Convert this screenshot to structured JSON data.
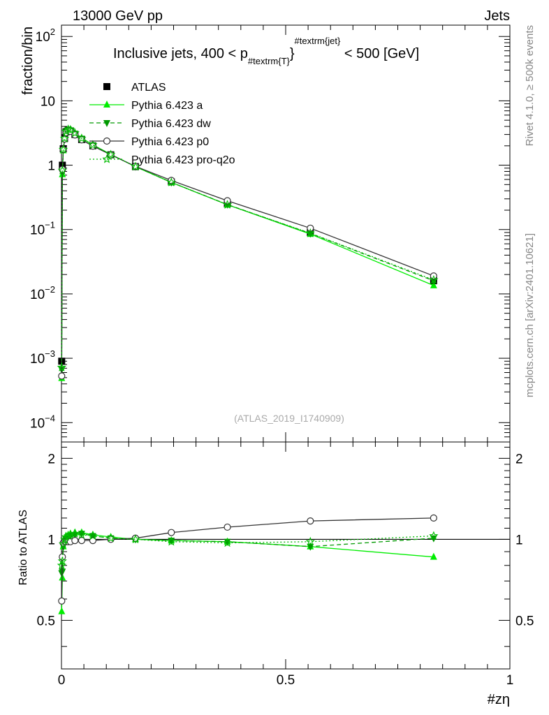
{
  "header": {
    "left": "13000 GeV pp",
    "right": "Jets",
    "analysis_id": "(ATLAS_2019_I1740909)",
    "side_top": "Rivet 4.1.0, ≥ 500k events",
    "side_bottom": "mcplots.cern.ch [arXiv:2401.10621]"
  },
  "colors": {
    "data": "#000000",
    "pythia_a": "#00ee00",
    "pythia_dw": "#009900",
    "pythia_p0": "#333333",
    "pythia_proq2o": "#00bb00"
  },
  "chart_data": {
    "type": "line",
    "title_parts": {
      "before": "Inclusive jets, 400 < p",
      "sub": "#textrm{T}",
      "sup": "#textrm{jet}",
      "after": " < 500 [GeV]"
    },
    "xlabel": "#zη",
    "ylabel": "fraction/bin",
    "ratio_ylabel": "Ratio to ATLAS",
    "xlim": [
      0,
      1
    ],
    "ylim": [
      5e-05,
      150
    ],
    "ratio_ylim": [
      0.33,
      2.3
    ],
    "x_ticks": [
      "0",
      "0.5",
      "1"
    ],
    "y_ticks": [
      {
        "value": 100,
        "base": "10",
        "exp": "2"
      },
      {
        "value": 10,
        "base": "10",
        "exp": ""
      },
      {
        "value": 1,
        "base": "1",
        "exp": ""
      },
      {
        "value": 0.1,
        "base": "10",
        "exp": "−1"
      },
      {
        "value": 0.01,
        "base": "10",
        "exp": "−2"
      },
      {
        "value": 0.001,
        "base": "10",
        "exp": "−3"
      },
      {
        "value": 0.0001,
        "base": "10",
        "exp": "−4"
      }
    ],
    "ratio_y_ticks": [
      "0.5",
      "1",
      "2"
    ],
    "x": [
      0.0005,
      0.002,
      0.004,
      0.007,
      0.01,
      0.015,
      0.02,
      0.03,
      0.045,
      0.07,
      0.11,
      0.165,
      0.245,
      0.37,
      0.555,
      0.83
    ],
    "series": [
      {
        "name": "ATLAS",
        "key": "data",
        "marker": "square",
        "line": "none",
        "values": [
          0.0009,
          1.0,
          1.8,
          2.6,
          3.3,
          3.5,
          3.4,
          3.0,
          2.5,
          2.0,
          1.45,
          0.95,
          0.55,
          0.25,
          0.09,
          0.016
        ],
        "ratio": [
          1,
          1,
          1,
          1,
          1,
          1,
          1,
          1,
          1,
          1,
          1,
          1,
          1,
          1,
          1,
          1
        ]
      },
      {
        "name": "Pythia 6.423 a",
        "key": "pythia_a",
        "marker": "triangle-up",
        "line": "solid",
        "values": [
          0.00049,
          0.72,
          1.7,
          2.6,
          3.4,
          3.65,
          3.6,
          3.2,
          2.65,
          2.08,
          1.47,
          0.95,
          0.54,
          0.243,
          0.085,
          0.0135
        ],
        "ratio": [
          0.54,
          0.72,
          0.94,
          1.0,
          1.03,
          1.04,
          1.05,
          1.06,
          1.06,
          1.04,
          1.02,
          1.0,
          0.99,
          0.98,
          0.94,
          0.86
        ]
      },
      {
        "name": "Pythia 6.423 dw",
        "key": "pythia_dw",
        "marker": "triangle-down",
        "line": "dashed",
        "values": [
          0.00067,
          0.76,
          1.7,
          2.55,
          3.3,
          3.55,
          3.5,
          3.1,
          2.6,
          2.05,
          1.46,
          0.95,
          0.54,
          0.245,
          0.087,
          0.016
        ],
        "ratio": [
          0.75,
          0.76,
          0.94,
          0.98,
          1.0,
          1.01,
          1.03,
          1.04,
          1.05,
          1.03,
          1.01,
          1.0,
          0.99,
          0.98,
          0.94,
          1.01
        ]
      },
      {
        "name": "Pythia 6.423 p0",
        "key": "pythia_p0",
        "marker": "open-circle",
        "line": "solid",
        "values": [
          0.00053,
          0.86,
          1.75,
          2.55,
          3.2,
          3.45,
          3.35,
          2.95,
          2.48,
          1.98,
          1.45,
          0.96,
          0.58,
          0.28,
          0.105,
          0.019
        ],
        "ratio": [
          0.59,
          0.86,
          0.97,
          0.98,
          0.98,
          0.98,
          0.98,
          0.99,
          0.99,
          0.99,
          1.0,
          1.01,
          1.06,
          1.11,
          1.17,
          1.2
        ]
      },
      {
        "name": "Pythia 6.423 pro-q2o",
        "key": "pythia_proq2o",
        "marker": "open-star",
        "line": "dotted",
        "values": [
          0.00072,
          0.83,
          1.75,
          2.6,
          3.35,
          3.6,
          3.55,
          3.15,
          2.6,
          2.06,
          1.46,
          0.95,
          0.54,
          0.243,
          0.088,
          0.0165
        ],
        "ratio": [
          0.8,
          0.83,
          0.96,
          1.0,
          1.02,
          1.03,
          1.04,
          1.05,
          1.04,
          1.03,
          1.01,
          1.0,
          0.98,
          0.97,
          0.98,
          1.03
        ]
      }
    ]
  }
}
